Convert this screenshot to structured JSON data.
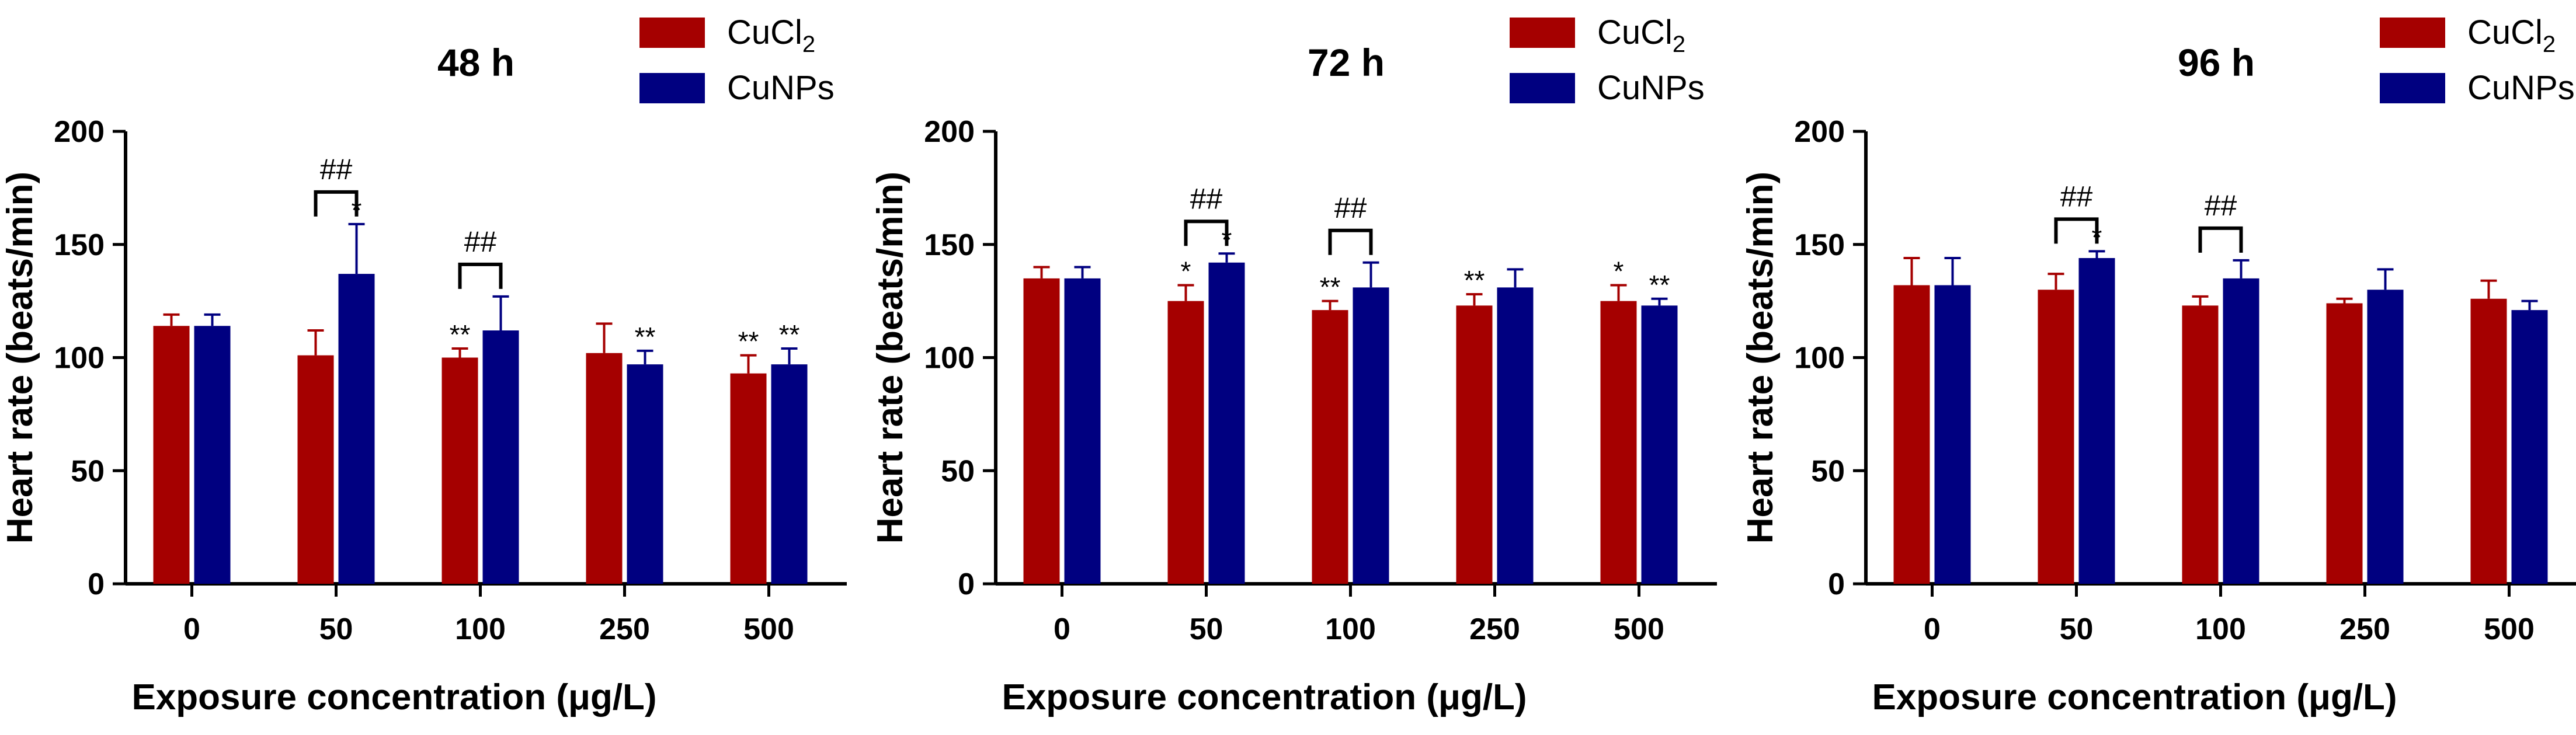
{
  "chart_data": [
    {
      "type": "bar",
      "title": "48 h",
      "xlabel": "Exposure concentration (μg/L)",
      "ylabel": "Heart rate (beats/min)",
      "ylim": [
        0,
        200
      ],
      "yticks": [
        0,
        50,
        100,
        150,
        200
      ],
      "categories": [
        "0",
        "50",
        "100",
        "250",
        "500"
      ],
      "series": [
        {
          "name": "CuCl",
          "name_sub": "2",
          "color": "#a50000",
          "values": [
            114,
            101,
            100,
            102,
            93
          ],
          "errors": [
            5,
            11,
            4,
            13,
            8
          ],
          "sig": [
            "",
            "",
            "**",
            "",
            "**"
          ]
        },
        {
          "name": "CuNPs",
          "color": "#000080",
          "values": [
            114,
            137,
            112,
            97,
            97
          ],
          "errors": [
            5,
            22,
            15,
            6,
            7
          ],
          "sig": [
            "",
            "*",
            "",
            "**",
            "**"
          ]
        }
      ],
      "brackets": [
        {
          "category": 1,
          "label": "##"
        },
        {
          "category": 2,
          "label": "##"
        }
      ]
    },
    {
      "type": "bar",
      "title": "72 h",
      "xlabel": "Exposure concentration (μg/L)",
      "ylabel": "Heart rate (beats/min)",
      "ylim": [
        0,
        200
      ],
      "yticks": [
        0,
        50,
        100,
        150,
        200
      ],
      "categories": [
        "0",
        "50",
        "100",
        "250",
        "500"
      ],
      "series": [
        {
          "name": "CuCl",
          "name_sub": "2",
          "color": "#a50000",
          "values": [
            135,
            125,
            121,
            123,
            125
          ],
          "errors": [
            5,
            7,
            4,
            5,
            7
          ],
          "sig": [
            "",
            "*",
            "**",
            "**",
            "*"
          ]
        },
        {
          "name": "CuNPs",
          "color": "#000080",
          "values": [
            135,
            142,
            131,
            131,
            123
          ],
          "errors": [
            5,
            4,
            11,
            8,
            3
          ],
          "sig": [
            "",
            "*",
            "",
            "",
            "**"
          ]
        }
      ],
      "brackets": [
        {
          "category": 1,
          "label": "##"
        },
        {
          "category": 2,
          "label": "##"
        }
      ]
    },
    {
      "type": "bar",
      "title": "96 h",
      "xlabel": "Exposure concentration (μg/L)",
      "ylabel": "Heart rate (beats/min)",
      "ylim": [
        0,
        200
      ],
      "yticks": [
        0,
        50,
        100,
        150,
        200
      ],
      "categories": [
        "0",
        "50",
        "100",
        "250",
        "500"
      ],
      "series": [
        {
          "name": "CuCl",
          "name_sub": "2",
          "color": "#a50000",
          "values": [
            132,
            130,
            123,
            124,
            126
          ],
          "errors": [
            12,
            7,
            4,
            2,
            8
          ],
          "sig": [
            "",
            "",
            "",
            "",
            ""
          ]
        },
        {
          "name": "CuNPs",
          "color": "#000080",
          "values": [
            132,
            144,
            135,
            130,
            121
          ],
          "errors": [
            12,
            3,
            8,
            9,
            4
          ],
          "sig": [
            "",
            "*",
            "",
            "",
            ""
          ]
        }
      ],
      "brackets": [
        {
          "category": 1,
          "label": "##"
        },
        {
          "category": 2,
          "label": "##"
        }
      ]
    }
  ]
}
